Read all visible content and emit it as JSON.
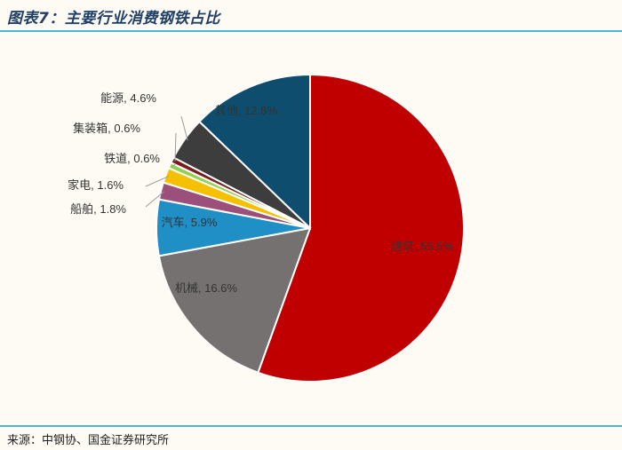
{
  "header": {
    "title": "图表7：主要行业消费钢铁占比"
  },
  "footer": {
    "source": "来源：中钢协、国金证券研究所"
  },
  "chart_data": {
    "type": "pie",
    "title": "图表7：主要行业消费钢铁占比",
    "slices": [
      {
        "name": "建筑",
        "label": "建筑, 55.5%",
        "value": 55.5,
        "color": "#c00000",
        "label_mode": "inside"
      },
      {
        "name": "机械",
        "label": "机械, 16.6%",
        "value": 16.6,
        "color": "#767171",
        "label_mode": "inside"
      },
      {
        "name": "汽车",
        "label": "汽车, 5.9%",
        "value": 5.9,
        "color": "#1f8fc6",
        "label_mode": "inside"
      },
      {
        "name": "船舶",
        "label": "船舶, 1.8%",
        "value": 1.8,
        "color": "#9b4f7a",
        "label_mode": "outside"
      },
      {
        "name": "家电",
        "label": "家电, 1.6%",
        "value": 1.6,
        "color": "#f5c000",
        "label_mode": "outside"
      },
      {
        "name": "铁道",
        "label": "铁道, 0.6%",
        "value": 0.6,
        "color": "#92d050",
        "label_mode": "outside"
      },
      {
        "name": "集装箱",
        "label": "集装箱, 0.6%",
        "value": 0.6,
        "color": "#7b1c1c",
        "label_mode": "outside"
      },
      {
        "name": "能源",
        "label": "能源, 4.6%",
        "value": 4.6,
        "color": "#3d3d3d",
        "label_mode": "outside"
      },
      {
        "name": "其他",
        "label": "其他, 12.8%",
        "value": 12.8,
        "color": "#0e4d6e",
        "label_mode": "inside"
      }
    ]
  }
}
